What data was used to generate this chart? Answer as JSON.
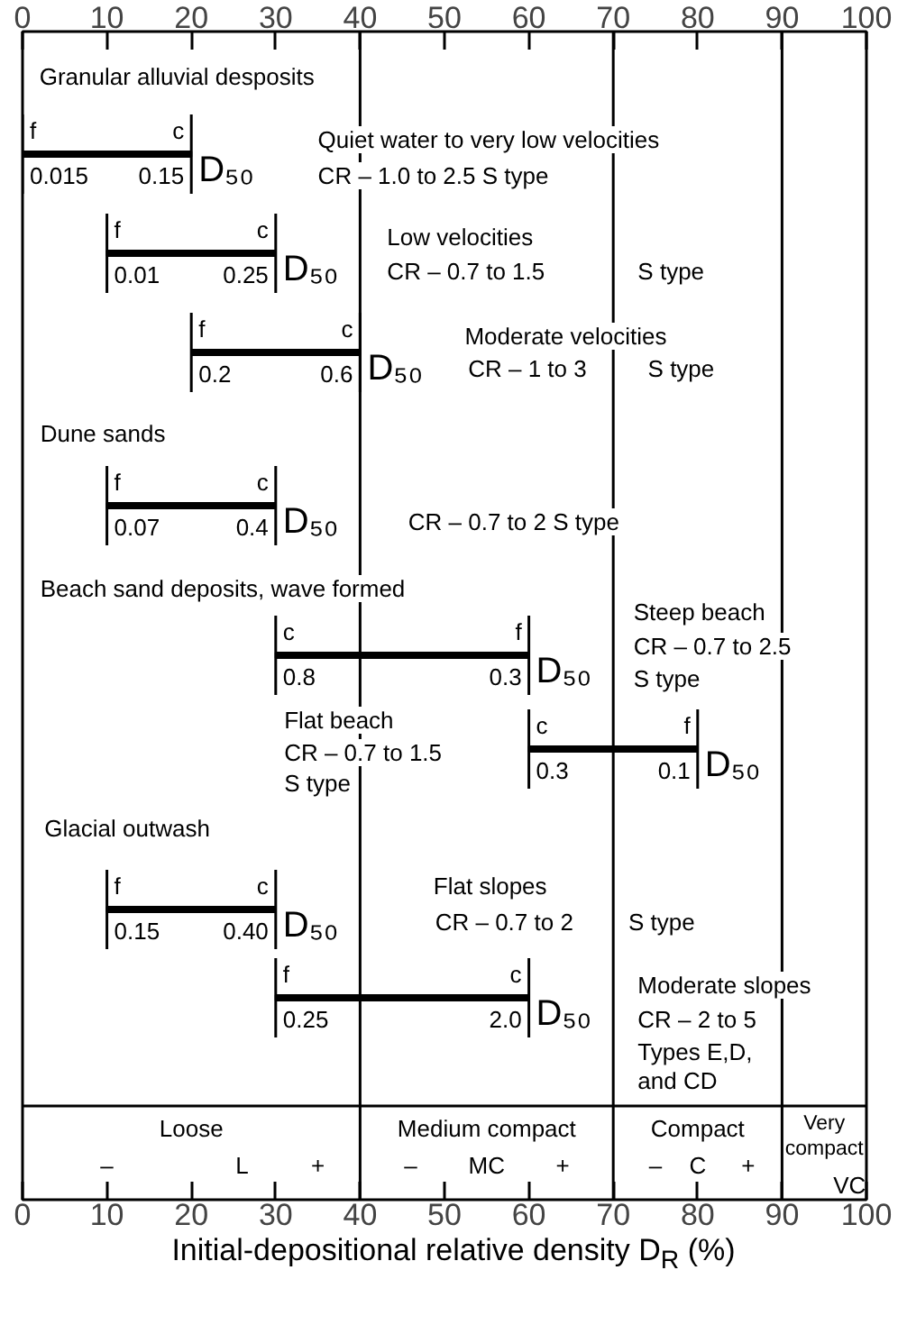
{
  "chart_data": {
    "type": "bar",
    "orientation": "horizontal",
    "color": "#000000",
    "categories": [
      null,
      null,
      null,
      null,
      null,
      null,
      null,
      null
    ],
    "base": [
      0,
      10,
      20,
      10,
      30,
      60,
      10,
      30
    ],
    "values": [
      20,
      20,
      20,
      20,
      30,
      20,
      20,
      30
    ],
    "xlim": [
      0,
      100
    ],
    "xticks": [
      0,
      10,
      20,
      30,
      40,
      50,
      60,
      70,
      80,
      90,
      100
    ],
    "x2lim": [
      0,
      100
    ],
    "x2ticks": [
      0,
      10,
      20,
      30,
      40,
      50,
      60,
      70,
      80,
      90,
      100
    ],
    "xlabel": "Initial-depositional relative density D$_{R}$ (%)",
    "grid": false,
    "ref_lines": [
      {
        "axis": "x",
        "value": 40
      },
      {
        "axis": "x",
        "value": 70
      },
      {
        "axis": "x",
        "value": 90
      }
    ],
    "annotations": [
      "Granular alluvial desposits",
      "f",
      "c",
      "0.015",
      "0.15",
      "D₅₀",
      "Quiet water to very low velocities",
      "CR – 1.0 to 2.5 S type",
      "f",
      "c",
      "0.01",
      "0.25",
      "D₅₀",
      "Low velocities",
      "CR – 0.7 to 1.5",
      "S type",
      "f",
      "c",
      "0.2",
      "0.6",
      "D₅₀",
      "Moderate velocities",
      "CR – 1 to 3",
      "S type",
      "Dune sands",
      "f",
      "c",
      "0.07",
      "0.4",
      "D₅₀",
      "CR – 0.7 to 2  S type",
      "Beach sand deposits, wave formed",
      "c",
      "f",
      "0.8",
      "0.3",
      "D₅₀",
      "Steep beach",
      "CR – 0.7 to 2.5",
      "S type",
      "c",
      "f",
      "0.3",
      "0.1",
      "D₅₀",
      "Flat beach",
      "CR – 0.7 to 1.5",
      "S type",
      "Glacial outwash",
      "f",
      "c",
      "0.15",
      "0.40",
      "D₅₀",
      "Flat slopes",
      "CR – 0.7 to 2",
      "S type",
      "f",
      "c",
      "0.25",
      "2.0",
      "D₅₀",
      "Moderate slopes",
      "CR – 2 to 5",
      "Types E,D,",
      "and CD",
      "Loose",
      "Medium compact",
      "Compact",
      "Very\ncompact",
      "–",
      "L",
      "+",
      "–",
      "MC",
      "+",
      "–",
      "C",
      "+",
      "VC"
    ]
  }
}
